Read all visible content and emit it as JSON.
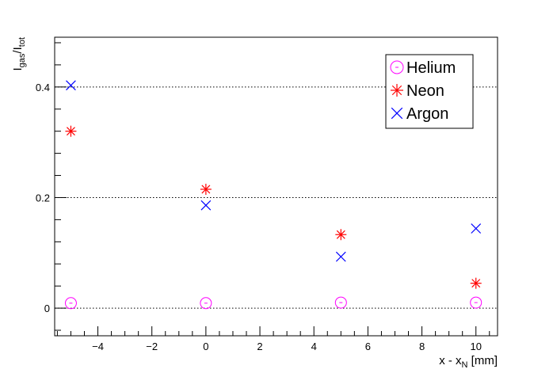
{
  "chart_data": {
    "type": "scatter",
    "title": "",
    "xlabel": {
      "main": "x - x",
      "sub": "N",
      "tail": " [mm]"
    },
    "ylabel": {
      "main": "I",
      "sub1": "gas",
      "mid": "/I",
      "sub2": "tot"
    },
    "xlim": [
      -5.6,
      10.8
    ],
    "ylim": [
      -0.05,
      0.49
    ],
    "x_ticks": [
      -4,
      -2,
      0,
      2,
      4,
      6,
      8,
      10
    ],
    "x_tick_labels": [
      "−4",
      "−2",
      "0",
      "2",
      "4",
      "6",
      "8",
      "10"
    ],
    "y_ticks": [
      0,
      0.2,
      0.4
    ],
    "y_tick_labels": [
      "0",
      "0.2",
      "0.4"
    ],
    "grid": {
      "x": false,
      "y": true,
      "style": "dotted"
    },
    "legend_position": "top-right",
    "series": [
      {
        "name": "Helium",
        "marker": "circle",
        "color": "#ff00ff",
        "x": [
          -5,
          0,
          5,
          10
        ],
        "y": [
          0.009,
          0.009,
          0.01,
          0.01
        ]
      },
      {
        "name": "Neon",
        "marker": "star",
        "color": "#ff0000",
        "x": [
          -5,
          0,
          5,
          10
        ],
        "y": [
          0.32,
          0.215,
          0.133,
          0.045
        ]
      },
      {
        "name": "Argon",
        "marker": "x",
        "color": "#0000ff",
        "x": [
          -5,
          0,
          5,
          10
        ],
        "y": [
          0.403,
          0.186,
          0.093,
          0.144
        ]
      }
    ]
  }
}
